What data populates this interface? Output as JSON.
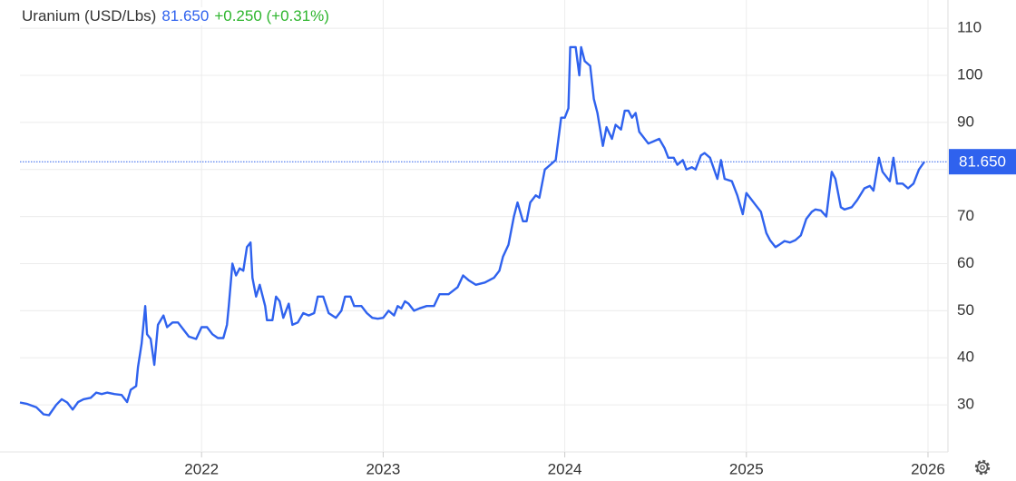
{
  "chart_data": {
    "type": "line",
    "title": "Uranium (USD/Lbs)",
    "last_price": {
      "value": 81.65,
      "label": "81.650"
    },
    "change": "+0.250 (+0.31%)",
    "color": "#2f62ee",
    "grid": true,
    "xlim": [
      2021.0,
      2026.11
    ],
    "xticks": [
      2022,
      2023,
      2024,
      2025,
      2026
    ],
    "ylim": [
      20,
      116
    ],
    "yticks": [
      30,
      40,
      50,
      60,
      70,
      80,
      90,
      100,
      110
    ],
    "x": [
      2021.0,
      2021.04,
      2021.09,
      2021.13,
      2021.16,
      2021.2,
      2021.23,
      2021.26,
      2021.29,
      2021.32,
      2021.35,
      2021.39,
      2021.42,
      2021.45,
      2021.48,
      2021.52,
      2021.56,
      2021.59,
      2021.61,
      2021.64,
      2021.65,
      2021.67,
      2021.69,
      2021.7,
      2021.72,
      2021.74,
      2021.76,
      2021.79,
      2021.81,
      2021.84,
      2021.87,
      2021.9,
      2021.93,
      2021.97,
      2022.0,
      2022.03,
      2022.06,
      2022.09,
      2022.12,
      2022.14,
      2022.15,
      2022.17,
      2022.19,
      2022.21,
      2022.23,
      2022.25,
      2022.27,
      2022.28,
      2022.3,
      2022.32,
      2022.35,
      2022.36,
      2022.39,
      2022.41,
      2022.43,
      2022.45,
      2022.48,
      2022.5,
      2022.53,
      2022.56,
      2022.59,
      2022.62,
      2022.64,
      2022.67,
      2022.7,
      2022.74,
      2022.77,
      2022.79,
      2022.82,
      2022.84,
      2022.88,
      2022.91,
      2022.94,
      2022.97,
      2023.0,
      2023.03,
      2023.06,
      2023.08,
      2023.1,
      2023.12,
      2023.14,
      2023.17,
      2023.2,
      2023.24,
      2023.28,
      2023.31,
      2023.36,
      2023.41,
      2023.44,
      2023.47,
      2023.51,
      2023.56,
      2023.61,
      2023.64,
      2023.66,
      2023.69,
      2023.72,
      2023.74,
      2023.77,
      2023.79,
      2023.81,
      2023.84,
      2023.86,
      2023.89,
      2023.92,
      2023.95,
      2023.98,
      2024.0,
      2024.02,
      2024.03,
      2024.06,
      2024.08,
      2024.09,
      2024.11,
      2024.14,
      2024.16,
      2024.18,
      2024.21,
      2024.23,
      2024.26,
      2024.28,
      2024.31,
      2024.33,
      2024.35,
      2024.37,
      2024.39,
      2024.41,
      2024.43,
      2024.46,
      2024.49,
      2024.52,
      2024.55,
      2024.57,
      2024.6,
      2024.62,
      2024.65,
      2024.67,
      2024.7,
      2024.72,
      2024.75,
      2024.77,
      2024.8,
      2024.84,
      2024.86,
      2024.88,
      2024.92,
      2024.95,
      2024.98,
      2025.0,
      2025.02,
      2025.05,
      2025.08,
      2025.11,
      2025.13,
      2025.16,
      2025.18,
      2025.21,
      2025.24,
      2025.27,
      2025.3,
      2025.33,
      2025.36,
      2025.38,
      2025.41,
      2025.44,
      2025.47,
      2025.49,
      2025.52,
      2025.54,
      2025.58,
      2025.61,
      2025.65,
      2025.68,
      2025.7,
      2025.73,
      2025.75,
      2025.79,
      2025.81,
      2025.83,
      2025.86,
      2025.89,
      2025.92,
      2025.95,
      2025.98
    ],
    "values": [
      30.5,
      30.2,
      29.5,
      28,
      27.8,
      30,
      31.2,
      30.5,
      29,
      30.6,
      31.2,
      31.5,
      32.6,
      32.3,
      32.6,
      32.3,
      32.1,
      30.6,
      33.2,
      34,
      38,
      43,
      51,
      45,
      44,
      38.5,
      47,
      49,
      46.5,
      47.5,
      47.5,
      46,
      44.5,
      44,
      46.5,
      46.5,
      45,
      44.2,
      44.2,
      47,
      51,
      60,
      57.5,
      59,
      58.5,
      63.5,
      64.5,
      57,
      53,
      55.5,
      51,
      48,
      48,
      53,
      52,
      48.5,
      51.5,
      47,
      47.5,
      49.5,
      49,
      49.5,
      53,
      53,
      49.5,
      48.5,
      50,
      53,
      53,
      51,
      51,
      49.5,
      48.5,
      48.3,
      48.5,
      50,
      49,
      51,
      50.5,
      52,
      51.5,
      50,
      50.5,
      51,
      51,
      53.5,
      53.5,
      55,
      57.5,
      56.5,
      55.5,
      56,
      57,
      58.5,
      61.5,
      64,
      70,
      73,
      69,
      69,
      73,
      74.5,
      74,
      80,
      81,
      82,
      91,
      91,
      93,
      106,
      106,
      100,
      106,
      103,
      102,
      95,
      92,
      85,
      89,
      86.5,
      89.5,
      88.5,
      92.5,
      92.5,
      91,
      92,
      88,
      87,
      85.5,
      86,
      86.5,
      84.5,
      82.5,
      82.5,
      81,
      82,
      80,
      80.5,
      80,
      83,
      83.5,
      82.5,
      78,
      82,
      78,
      77.5,
      74.5,
      70.5,
      75,
      74,
      72.5,
      71,
      66.5,
      65,
      63.5,
      64,
      64.8,
      64.5,
      65,
      66,
      69.5,
      71,
      71.5,
      71.3,
      70,
      79.5,
      78,
      72,
      71.5,
      72,
      73.5,
      76,
      76.5,
      75.5,
      82.5,
      79.5,
      77.5,
      82.5,
      77,
      77,
      76,
      77,
      80,
      81.65
    ]
  }
}
